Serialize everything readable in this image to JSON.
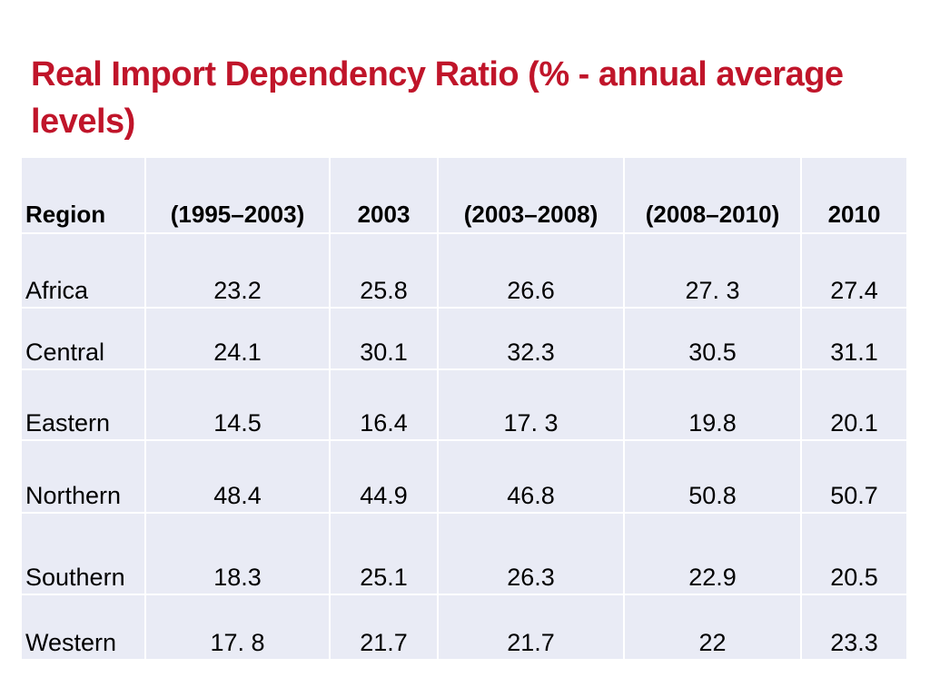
{
  "title": "Real Import Dependency Ratio  (% - annual average levels)",
  "table": {
    "headers": [
      "Region",
      "(1995–2003)",
      "2003",
      "(2003–2008)",
      "(2008–2010)",
      "2010"
    ],
    "rows": [
      [
        "Africa",
        "23.2",
        "25.8",
        "26.6",
        "27. 3",
        "27.4"
      ],
      [
        "Central",
        "24.1",
        "30.1",
        "32.3",
        "30.5",
        "31.1"
      ],
      [
        "Eastern",
        "14.5",
        "16.4",
        "17. 3",
        "19.8",
        "20.1"
      ],
      [
        "Northern",
        "48.4",
        "44.9",
        "46.8",
        "50.8",
        "50.7"
      ],
      [
        "Southern",
        "18.3",
        "25.1",
        "26.3",
        "22.9",
        "20.5"
      ],
      [
        "Western",
        "17. 8",
        "21.7",
        "21.7",
        "22",
        "23.3"
      ]
    ]
  },
  "colors": {
    "title": "#c0152a",
    "table_bg": "#e9ebf5",
    "grid": "#ffffff"
  }
}
